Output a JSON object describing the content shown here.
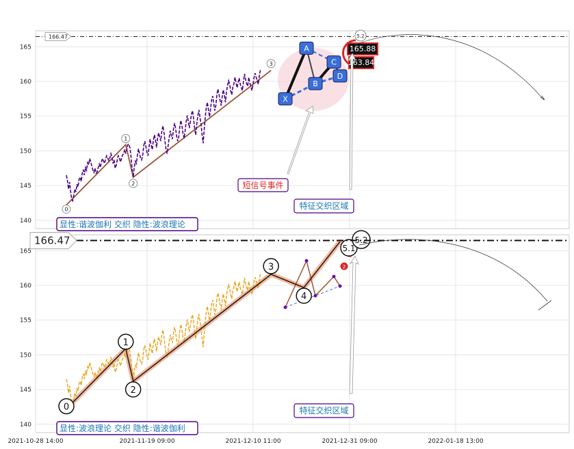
{
  "chart_data": {
    "type": "line",
    "x_ticks": [
      "2021-10-28 14:00",
      "2021-11-19 09:00",
      "2021-12-10 11:00",
      "2021-12-31 09:00",
      "2022-01-18 13:00"
    ],
    "panels": [
      {
        "id": "top",
        "ylim": [
          138.8,
          167.3
        ],
        "y_ticks": [
          140,
          145,
          150,
          155,
          160,
          165
        ],
        "price_series_color": "#4b0082",
        "price": [
          146.5,
          145.8,
          144.5,
          145.5,
          144.2,
          143.0,
          142.8,
          143.6,
          144.5,
          144.1,
          145.2,
          144.8,
          145.9,
          146.2,
          145.6,
          146.8,
          147.3,
          146.5,
          147.6,
          147.2,
          148.3,
          148.0,
          148.9,
          148.4,
          147.8,
          147.2,
          146.9,
          147.5,
          146.8,
          146.9,
          147.6,
          148.1,
          147.6,
          148.4,
          148.9,
          148.5,
          148.2,
          148.8,
          149.3,
          149.0,
          148.6,
          149.0,
          149.6,
          149.1,
          148.2,
          148.7,
          147.5,
          147.9,
          148.7,
          149.3,
          149.0,
          148.4,
          148.9,
          149.4,
          149.6,
          150.2,
          149.6,
          150.3,
          150.9,
          151.0,
          150.4,
          149.1,
          147.4,
          146.2,
          147.6,
          148.5,
          148.2,
          149.4,
          150.3,
          149.6,
          149.0,
          148.7,
          149.4,
          150.8,
          151.4,
          150.6,
          149.8,
          149.3,
          150.6,
          151.7,
          150.8,
          150.2,
          151.5,
          152.3,
          151.6,
          150.5,
          151.8,
          152.6,
          152.0,
          151.4,
          152.8,
          153.6,
          152.7,
          151.3,
          150.2,
          149.6,
          150.8,
          151.9,
          152.9,
          152.2,
          151.7,
          153.2,
          154.0,
          153.3,
          152.1,
          151.4,
          152.0,
          153.6,
          154.4,
          153.6,
          152.5,
          151.8,
          152.9,
          154.2,
          155.1,
          154.2,
          153.3,
          154.3,
          155.3,
          155.8,
          154.6,
          153.1,
          152.3,
          153.9,
          155.1,
          155.9,
          154.8,
          153.9,
          152.3,
          151.1,
          153.1,
          154.9,
          156.3,
          157.0,
          155.9,
          154.9,
          156.1,
          157.4,
          157.9,
          156.8,
          155.8,
          156.6,
          158.2,
          158.9,
          158.1,
          157.2,
          156.5,
          157.9,
          158.8,
          158.0,
          157.0,
          158.6,
          159.4,
          160.1,
          159.6,
          158.6,
          158.1,
          159.2,
          159.7,
          160.6,
          159.8,
          159.1,
          159.9,
          160.5,
          159.6,
          159.1,
          158.7,
          160.0,
          161.1,
          160.3,
          159.7,
          159.3,
          160.6,
          159.8,
          159.2,
          158.7,
          159.6,
          160.6,
          161.2,
          160.6,
          160.1,
          159.6,
          160.9,
          161.7
        ],
        "zigzag": [
          [
            0,
            142.2
          ],
          [
            56,
            150.9
          ],
          [
            63,
            146.2
          ],
          [
            193,
            161.6
          ]
        ],
        "wave_labels": [
          "0",
          "1",
          "2",
          "3"
        ],
        "harmonic_points": [
          [
            "X",
            157.5
          ],
          [
            "A",
            164.8
          ],
          [
            "B",
            159.7
          ],
          [
            "C",
            162.8
          ],
          [
            "D",
            160.8
          ]
        ],
        "harmonic_prz": [
          163.84,
          165.88
        ],
        "hline": 166.47,
        "hline_label": "166.47",
        "curve_label": "5.2",
        "annotations": [
          "短信号事件",
          "特征交织区域"
        ],
        "caption": "显性:谐波伽利 交织 隐性:波浪理论"
      },
      {
        "id": "bottom",
        "ylim": [
          138.8,
          167.3
        ],
        "y_ticks": [
          140,
          145,
          150,
          155,
          160,
          165
        ],
        "price_series_color": "#e8a317",
        "zigzag": [
          [
            0,
            142.2
          ],
          [
            56,
            150.9
          ],
          [
            63,
            146.2
          ],
          [
            193,
            161.6
          ],
          [
            224,
            159.7
          ],
          [
            258,
            166.3
          ]
        ],
        "wave_labels": [
          "0",
          "1",
          "2",
          "3",
          "4",
          "5.1",
          "5.2"
        ],
        "hline": 166.47,
        "hline_label": "166.47",
        "annotations": [
          "特征交织区域"
        ],
        "caption": "显性:波浪理论 交织 隐性:谐波伽利"
      }
    ]
  },
  "colors": {
    "caption_border": "#4b0082",
    "caption_text": "#1f77b4",
    "event_text": "#d62728",
    "harmonic_fill": "#3a6fd8",
    "zigzag": "#333333",
    "channel": "#f4a582"
  }
}
